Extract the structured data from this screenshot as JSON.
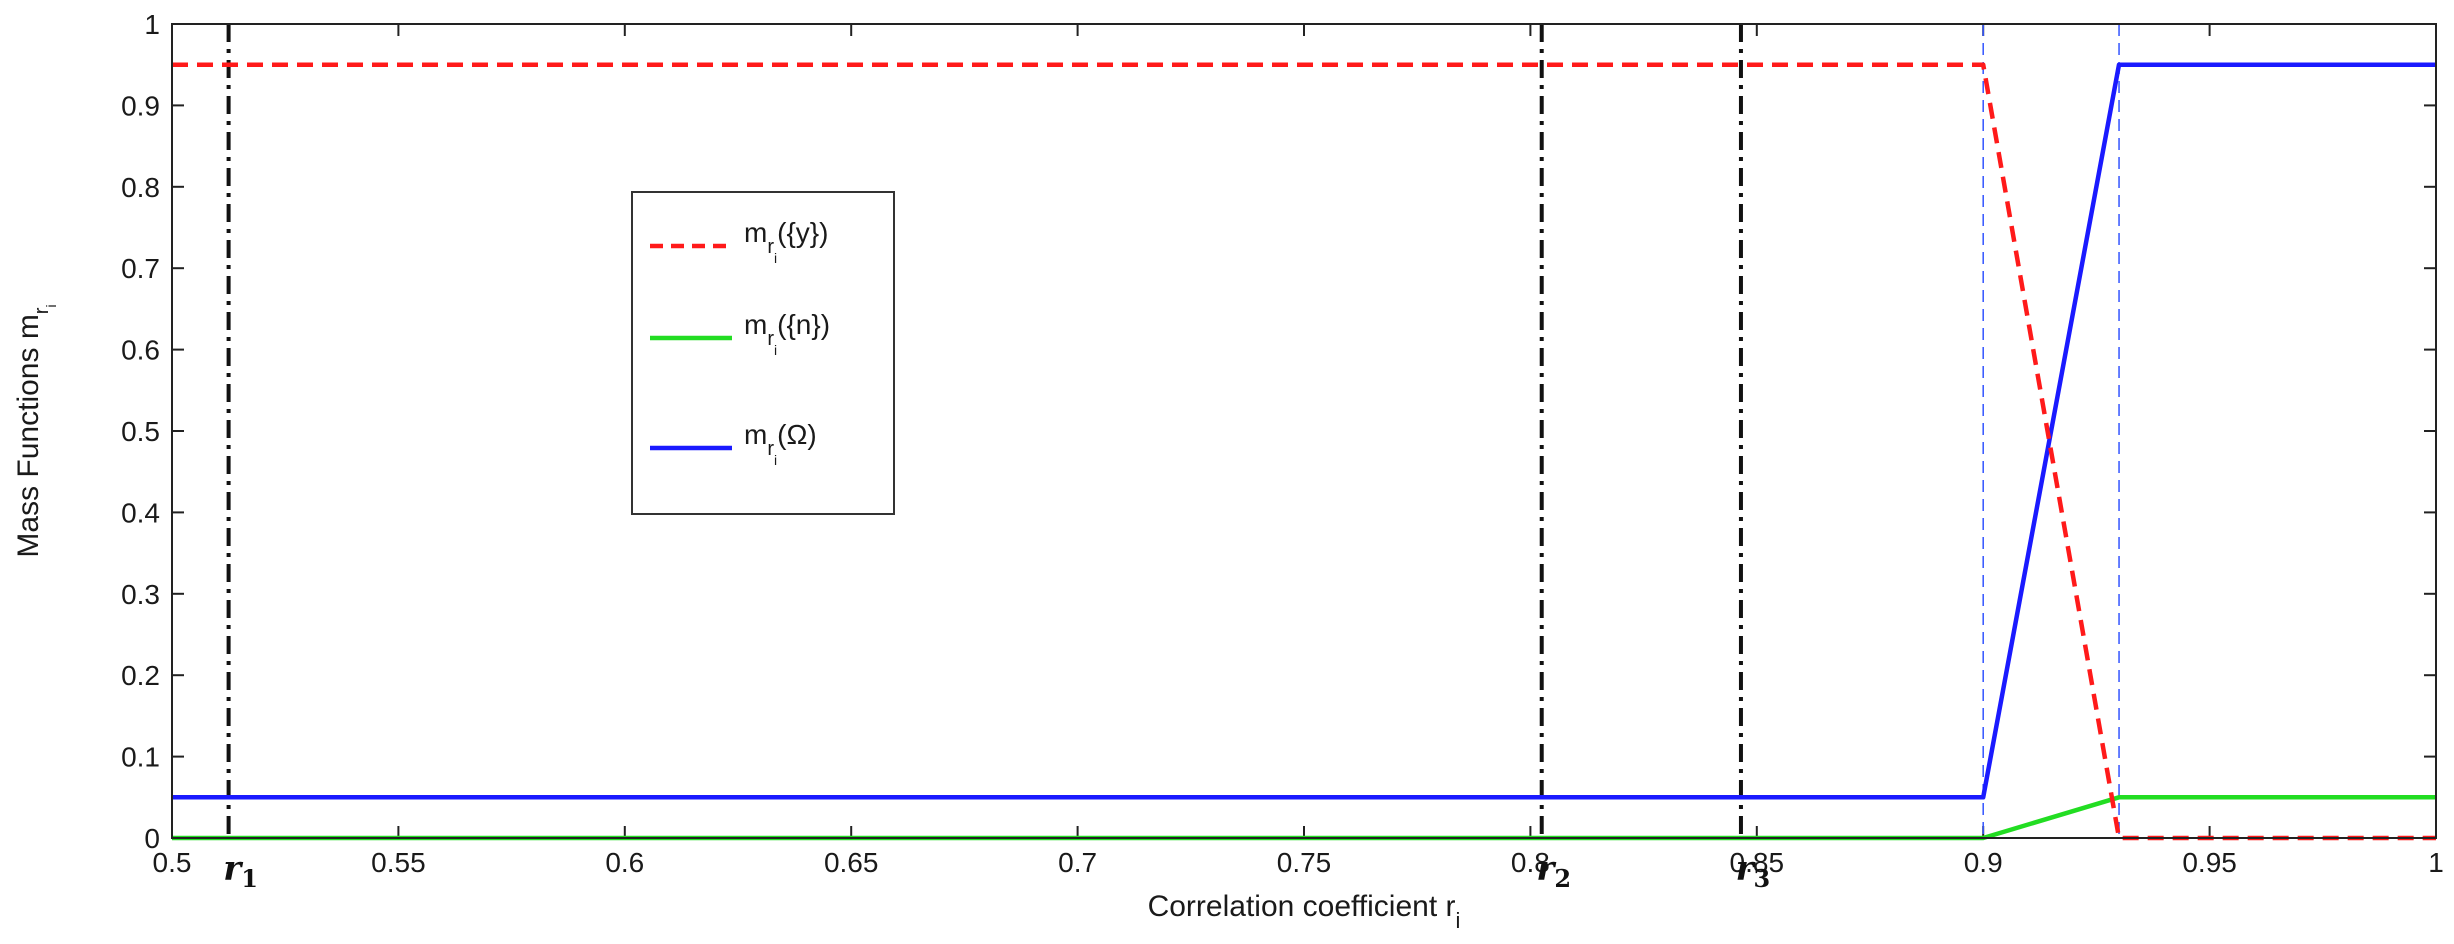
{
  "chart_data": {
    "type": "line",
    "title": "",
    "xlabel": "Correlation coefficient r",
    "xlabel_sub": "i",
    "ylabel": "Mass Functions m",
    "ylabel_sub": "r",
    "ylabel_subsub": "i",
    "xlim": [
      0.5,
      1
    ],
    "ylim": [
      0,
      1
    ],
    "xticks": [
      "0.5",
      "0.55",
      "0.6",
      "0.65",
      "0.7",
      "0.75",
      "0.8",
      "0.85",
      "0.9",
      "0.95",
      "1"
    ],
    "yticks": [
      "0",
      "0.1",
      "0.2",
      "0.3",
      "0.4",
      "0.5",
      "0.6",
      "0.7",
      "0.8",
      "0.9",
      "1"
    ],
    "grid": false,
    "legend_position": "left-center",
    "series": [
      {
        "name": "m_{r_i}({y})",
        "legend_main": "m",
        "legend_sub": "r",
        "legend_subsub": "i",
        "legend_suffix": "({y})",
        "color": "#ff1a1a",
        "style": "dashed",
        "x": [
          0.5,
          0.9,
          0.93,
          1.0
        ],
        "y": [
          0.95,
          0.95,
          0.0,
          0.0
        ]
      },
      {
        "name": "m_{r_i}({n})",
        "legend_main": "m",
        "legend_sub": "r",
        "legend_subsub": "i",
        "legend_suffix": "({n})",
        "color": "#22dd22",
        "style": "solid",
        "x": [
          0.5,
          0.9,
          0.93,
          1.0
        ],
        "y": [
          0.0,
          0.0,
          0.05,
          0.05
        ]
      },
      {
        "name": "m_{r_i}(Ω)",
        "legend_main": "m",
        "legend_sub": "r",
        "legend_subsub": "i",
        "legend_suffix": "(Ω)",
        "color": "#1a1aff",
        "style": "solid",
        "x": [
          0.5,
          0.9,
          0.93,
          1.0
        ],
        "y": [
          0.05,
          0.05,
          0.95,
          0.95
        ]
      }
    ],
    "thresholds": [
      {
        "x": 0.9,
        "color": "#3355ff"
      },
      {
        "x": 0.93,
        "color": "#3355ff"
      }
    ],
    "markers": [
      {
        "x": 0.5125,
        "label": "r",
        "sub": "1"
      },
      {
        "x": 0.8025,
        "label": "r",
        "sub": "2"
      },
      {
        "x": 0.8465,
        "label": "r",
        "sub": "3"
      }
    ]
  }
}
